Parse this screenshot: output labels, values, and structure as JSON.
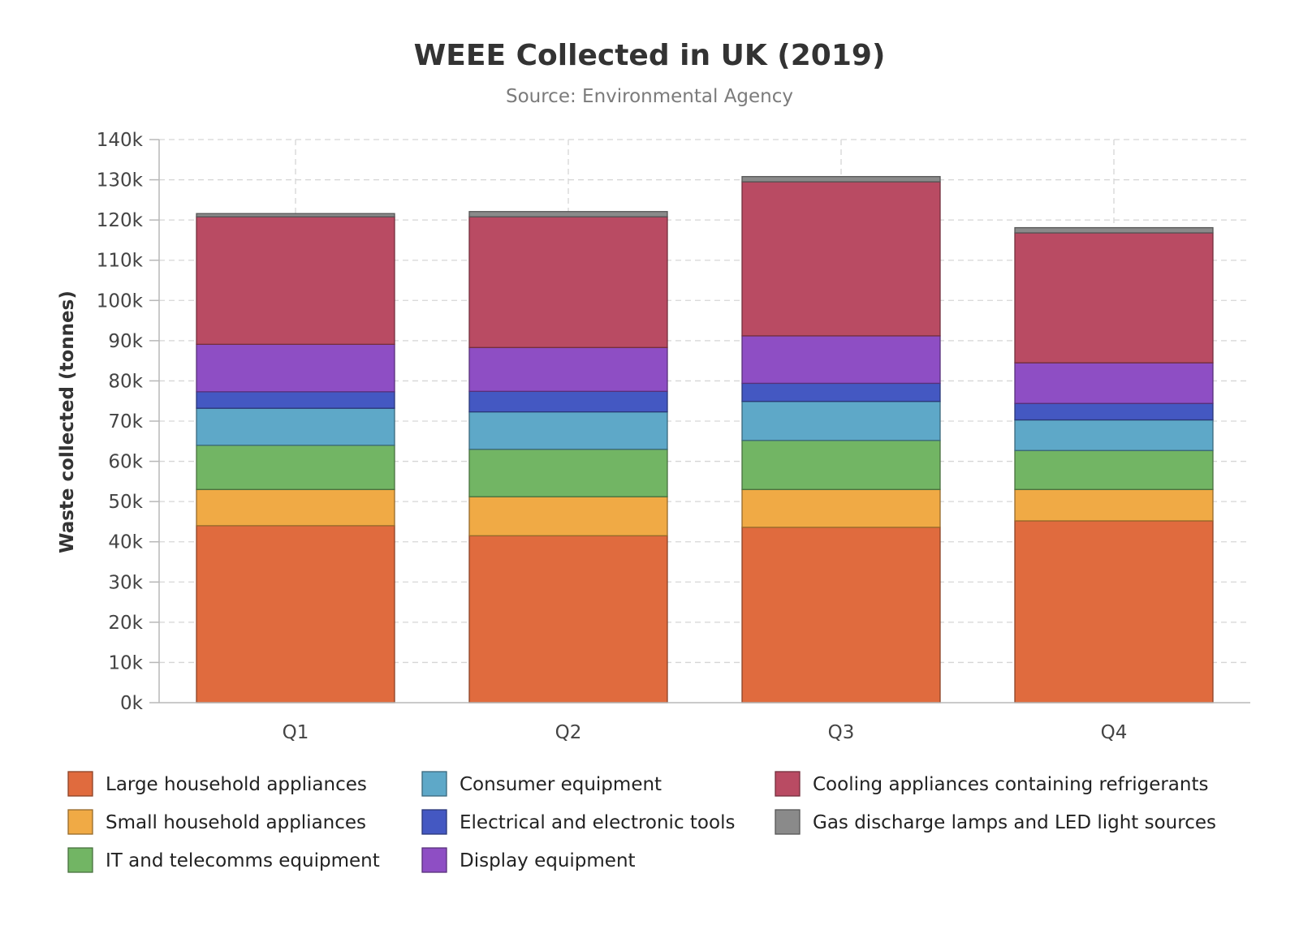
{
  "chart_data": {
    "type": "bar",
    "stacked": true,
    "title": "WEEE Collected in UK (2019)",
    "subtitle": "Source: Environmental Agency",
    "xlabel": "",
    "ylabel": "Waste collected (tonnes)",
    "ylim": [
      0,
      140000
    ],
    "yticks": [
      0,
      10000,
      20000,
      30000,
      40000,
      50000,
      60000,
      70000,
      80000,
      90000,
      100000,
      110000,
      120000,
      130000,
      140000
    ],
    "ytick_labels": [
      "0k",
      "10k",
      "20k",
      "30k",
      "40k",
      "50k",
      "60k",
      "70k",
      "80k",
      "90k",
      "100k",
      "110k",
      "120k",
      "130k",
      "140k"
    ],
    "grid": true,
    "legend_position": "bottom",
    "categories": [
      "Q1",
      "Q2",
      "Q3",
      "Q4"
    ],
    "series": [
      {
        "name": "Large household appliances",
        "color": "#e06b3e",
        "values": [
          44000,
          41500,
          43600,
          45200
        ]
      },
      {
        "name": "Small household appliances",
        "color": "#f0aa45",
        "values": [
          9000,
          9700,
          9400,
          7800
        ]
      },
      {
        "name": "IT and telecomms equipment",
        "color": "#72b564",
        "values": [
          11000,
          11800,
          12200,
          9700
        ]
      },
      {
        "name": "Consumer equipment",
        "color": "#5ea8c8",
        "values": [
          9200,
          9300,
          9700,
          7600
        ]
      },
      {
        "name": "Electrical and electronic tools",
        "color": "#4458c2",
        "values": [
          4100,
          5100,
          4500,
          4100
        ]
      },
      {
        "name": "Display equipment",
        "color": "#8e4ec4",
        "values": [
          11800,
          10900,
          11800,
          10100
        ]
      },
      {
        "name": "Cooling appliances containing refrigerants",
        "color": "#b94b63",
        "values": [
          31700,
          32500,
          38300,
          32300
        ]
      },
      {
        "name": "Gas discharge lamps and LED light sources",
        "color": "#8a8a8a",
        "values": [
          800,
          1300,
          1300,
          1300
        ]
      }
    ]
  }
}
